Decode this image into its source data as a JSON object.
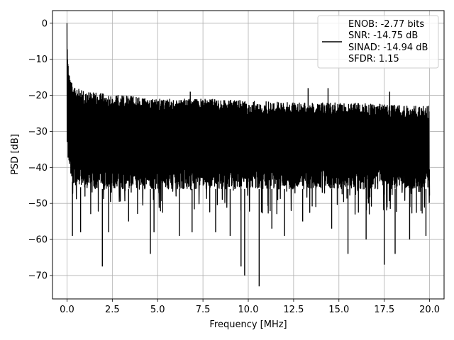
{
  "chart_data": {
    "type": "line",
    "title": "",
    "xlabel": "Frequency [MHz]",
    "ylabel": "PSD [dB]",
    "xlim": [
      -0.8,
      20.8
    ],
    "ylim": [
      -76.5,
      3.5
    ],
    "xticks": [
      0.0,
      2.5,
      5.0,
      7.5,
      10.0,
      12.5,
      15.0,
      17.5,
      20.0
    ],
    "xtick_labels": [
      "0.0",
      "2.5",
      "5.0",
      "7.5",
      "10.0",
      "12.5",
      "15.0",
      "17.5",
      "20.0"
    ],
    "yticks": [
      0,
      -10,
      -20,
      -30,
      -40,
      -50,
      -60,
      -70
    ],
    "ytick_labels": [
      "0",
      "−10",
      "−20",
      "−30",
      "−40",
      "−50",
      "−60",
      "−70"
    ],
    "grid": true,
    "legend_placement": "upper right",
    "line_color": "#000000",
    "legend": [
      "ENOB: -2.77 bits",
      "SNR: -14.75 dB",
      "SINAD: -14.94 dB",
      "SFDR: 1.15"
    ],
    "series": [
      {
        "x": [
          0.0,
          0.05,
          0.1,
          0.2,
          0.3,
          0.5,
          1.0,
          2.0,
          3.0,
          5.0,
          7.5,
          10.0,
          12.5,
          15.0,
          17.5,
          20.0
        ],
        "upper": [
          0.0,
          -10,
          -13,
          -16,
          -17,
          -18,
          -19,
          -19.5,
          -20,
          -21,
          -21,
          -21.5,
          -22,
          -22,
          -22.5,
          -23
        ],
        "lower": [
          -34,
          -38,
          -40,
          -42,
          -44,
          -45,
          -46,
          -46,
          -46,
          -46,
          -46,
          -46,
          -46,
          -46,
          -46,
          -46
        ],
        "spikes": [
          {
            "x": 0.3,
            "y": -59
          },
          {
            "x": 0.75,
            "y": -58
          },
          {
            "x": 1.95,
            "y": -67.5
          },
          {
            "x": 2.3,
            "y": -58
          },
          {
            "x": 3.4,
            "y": -55
          },
          {
            "x": 4.6,
            "y": -64
          },
          {
            "x": 4.8,
            "y": -58
          },
          {
            "x": 6.2,
            "y": -59
          },
          {
            "x": 6.9,
            "y": -58
          },
          {
            "x": 8.2,
            "y": -58
          },
          {
            "x": 9.0,
            "y": -59
          },
          {
            "x": 9.6,
            "y": -67.5
          },
          {
            "x": 9.8,
            "y": -70
          },
          {
            "x": 10.6,
            "y": -73
          },
          {
            "x": 11.3,
            "y": -57
          },
          {
            "x": 12.0,
            "y": -59
          },
          {
            "x": 13.0,
            "y": -55
          },
          {
            "x": 14.6,
            "y": -57
          },
          {
            "x": 15.5,
            "y": -64
          },
          {
            "x": 16.5,
            "y": -60
          },
          {
            "x": 17.5,
            "y": -67
          },
          {
            "x": 18.1,
            "y": -64
          },
          {
            "x": 18.9,
            "y": -60
          },
          {
            "x": 19.8,
            "y": -59
          }
        ],
        "peaks": [
          {
            "x": 6.8,
            "y": -19
          },
          {
            "x": 13.3,
            "y": -18
          },
          {
            "x": 14.4,
            "y": -18
          },
          {
            "x": 17.8,
            "y": -19
          }
        ]
      }
    ]
  }
}
